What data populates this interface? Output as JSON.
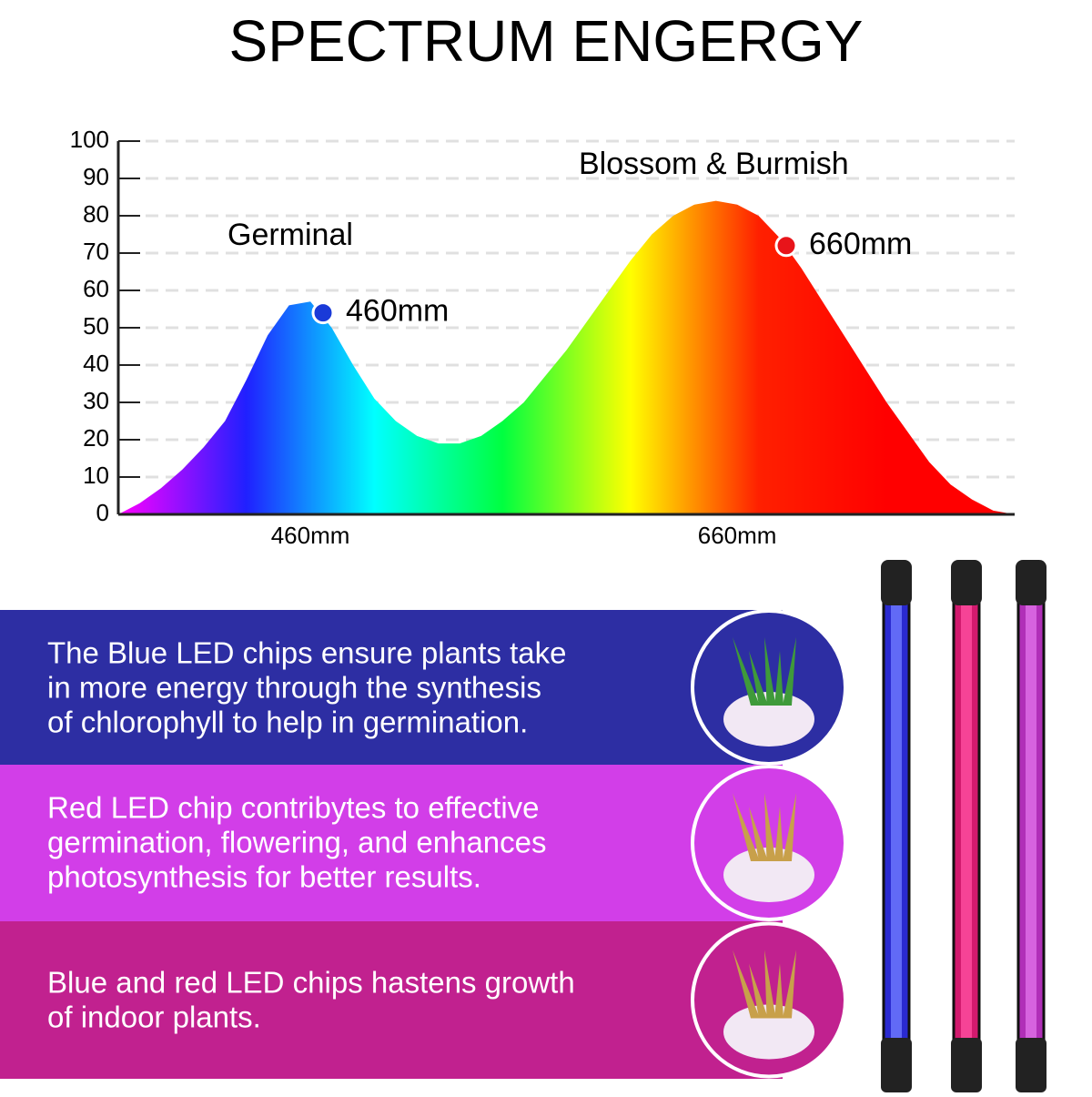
{
  "chart_data": {
    "type": "area",
    "title": "SPECTRUM ENGERGY",
    "categories": [
      null,
      null,
      null,
      null,
      null,
      null,
      null,
      null,
      null,
      "460mm",
      null,
      null,
      null,
      null,
      null,
      null,
      null,
      null,
      null,
      null,
      null,
      null,
      null,
      null,
      null,
      null,
      null,
      null,
      null,
      "660mm",
      null,
      null,
      null,
      null,
      null,
      null,
      null,
      null,
      null,
      null,
      null,
      null,
      null
    ],
    "values": [
      0,
      3,
      7,
      12,
      18,
      25,
      36,
      48,
      56,
      57,
      50,
      40,
      31,
      25,
      21,
      19,
      19,
      21,
      25,
      30,
      37,
      44,
      52,
      60,
      68,
      75,
      80,
      83,
      84,
      83,
      80,
      74,
      66,
      57,
      48,
      39,
      30,
      22,
      14,
      8,
      4,
      1,
      0
    ],
    "gradient": [
      "#ff00ff",
      "#2020ff",
      "#00ffff",
      "#00ff40",
      "#ffff00",
      "#ff2000",
      "#ff0000",
      "#ff0000"
    ],
    "ylim": [
      0,
      100
    ],
    "yticks": [
      0,
      10,
      20,
      30,
      40,
      50,
      60,
      70,
      80,
      90,
      100
    ],
    "grid": true,
    "annotations": [
      "Germinal",
      "Blossom & Burmish"
    ],
    "markers": [
      {
        "label": "460mm",
        "value": 54,
        "color": "#1a3ad8"
      },
      {
        "label": "660mm",
        "value": 72,
        "color": "#e8141a"
      }
    ]
  },
  "panels": [
    {
      "color": "#2d2ea3",
      "lines": [
        "The Blue LED chips ensure plants take",
        "in more energy through the synthesis",
        "of chlorophyll to help in germination."
      ]
    },
    {
      "color": "#d23ee8",
      "lines": [
        "Red LED chip contribytes to effective",
        "germination, flowering, and enhances",
        "photosynthesis for better results."
      ]
    },
    {
      "color": "#c1218f",
      "lines": [
        "Blue and red LED chips hastens growth",
        "of indoor plants."
      ]
    }
  ]
}
